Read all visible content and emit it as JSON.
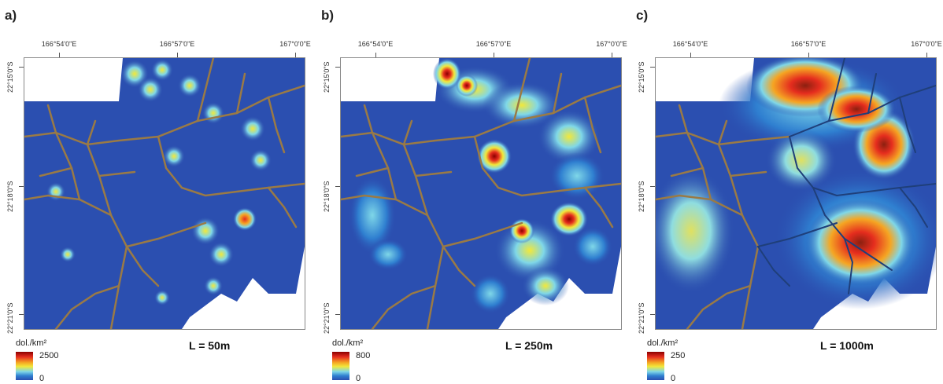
{
  "panels": [
    {
      "letter": "a)",
      "lon_labels": [
        "166°54'0\"E",
        "166°57'0\"E",
        "167°0'0\"E"
      ],
      "lat_labels": [
        "22°15'0\"S",
        "22°18'0\"S",
        "22°21'0\"S"
      ],
      "legend": {
        "unit": "dol./km²",
        "max": "2500",
        "min": "0"
      },
      "scale_label": "L = 50m"
    },
    {
      "letter": "b)",
      "lon_labels": [
        "166°54'0\"E",
        "166°57'0\"E",
        "167°0'0\"E"
      ],
      "lat_labels": [
        "22°15'0\"S",
        "22°18'0\"S",
        "22°21'0\"S"
      ],
      "legend": {
        "unit": "dol./km²",
        "max": "800",
        "min": "0"
      },
      "scale_label": "L = 250m"
    },
    {
      "letter": "c)",
      "lon_labels": [
        "166°54'0\"E",
        "166°57'0\"E",
        "167°0'0\"E"
      ],
      "lat_labels": [
        "22°15'0\"S",
        "22°18'0\"S",
        "22°21'0\"S"
      ],
      "legend": {
        "unit": "dol./km²",
        "max": "250",
        "min": "0"
      },
      "scale_label": "L = 1000m"
    }
  ],
  "colors": {
    "background_density": "#2b4fb0",
    "drainage": "#9a7a45",
    "rivers_overlay": "#1f3f7a",
    "ramp": [
      "#2b4fb0",
      "#2f7fd0",
      "#7fd7e8",
      "#f2e83a",
      "#f5a623",
      "#e52d1e",
      "#8b0000"
    ]
  }
}
